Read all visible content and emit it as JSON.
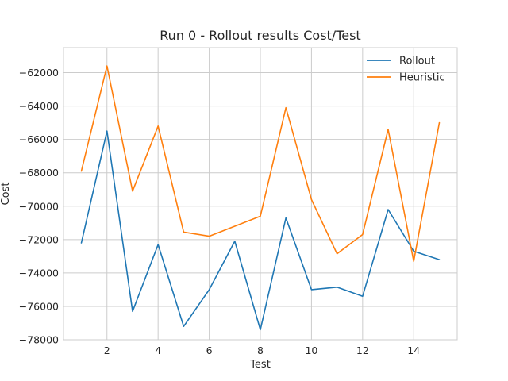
{
  "chart_data": {
    "type": "line",
    "title": "Run 0 - Rollout results Cost/Test",
    "xlabel": "Test",
    "ylabel": "Cost",
    "x": [
      1,
      2,
      3,
      4,
      5,
      6,
      7,
      8,
      9,
      10,
      11,
      12,
      13,
      14,
      15
    ],
    "xlim": [
      0.3,
      15.7
    ],
    "ylim": [
      -78000,
      -60500
    ],
    "xticks": [
      2,
      4,
      6,
      8,
      10,
      12,
      14
    ],
    "xtick_labels": [
      "2",
      "4",
      "6",
      "8",
      "10",
      "12",
      "14"
    ],
    "yticks": [
      -78000,
      -76000,
      -74000,
      -72000,
      -70000,
      -68000,
      -66000,
      -64000,
      -62000
    ],
    "ytick_labels": [
      "−78000",
      "−76000",
      "−74000",
      "−72000",
      "−70000",
      "−68000",
      "−66000",
      "−64000",
      "−62000"
    ],
    "grid": true,
    "legend_position": "top-right",
    "series": [
      {
        "name": "Rollout",
        "color": "#1f77b4",
        "values": [
          -72200,
          -65500,
          -76300,
          -72300,
          -77200,
          -75000,
          -72100,
          -77400,
          -70700,
          -75000,
          -74850,
          -75400,
          -70200,
          -72700,
          -73200
        ]
      },
      {
        "name": "Heuristic",
        "color": "#ff7f0e",
        "values": [
          -67900,
          -61600,
          -69100,
          -65200,
          -71550,
          -71800,
          -71200,
          -70600,
          -64100,
          -69600,
          -72850,
          -71700,
          -65400,
          -73300,
          -65000
        ]
      }
    ]
  }
}
